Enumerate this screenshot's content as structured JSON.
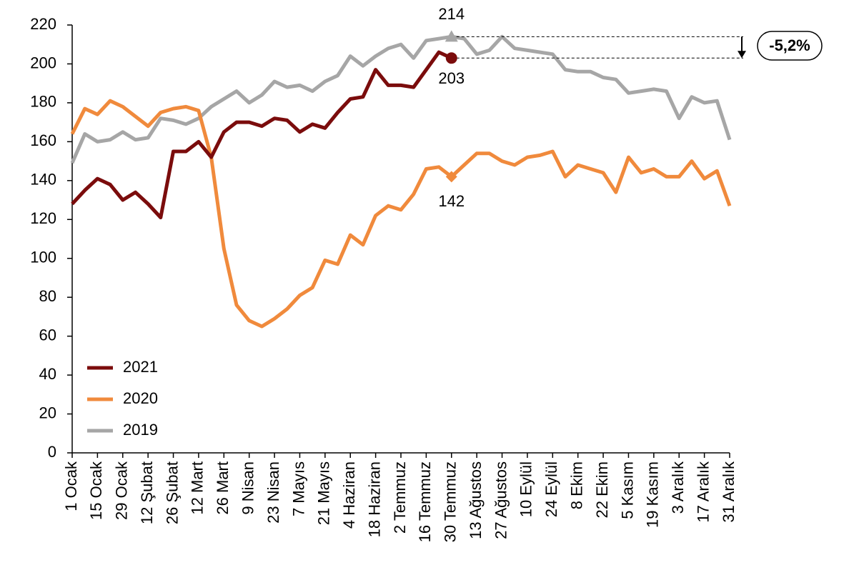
{
  "chart_data": {
    "type": "line",
    "categories": [
      "1 Ocak",
      null,
      "15 Ocak",
      null,
      "29 Ocak",
      null,
      "12 Şubat",
      null,
      "26 Şubat",
      null,
      "12 Mart",
      null,
      "26 Mart",
      null,
      "9 Nisan",
      null,
      "23 Nisan",
      null,
      "7 Mayıs",
      null,
      "21 Mayıs",
      null,
      "4 Haziran",
      null,
      "18 Haziran",
      null,
      "2 Temmuz",
      null,
      "16 Temmuz",
      null,
      "30 Temmuz",
      null,
      "13 Ağustos",
      null,
      "27 Ağustos",
      null,
      "10 Eylül",
      null,
      "24 Eylül",
      null,
      "8 Ekim",
      null,
      "22 Ekim",
      null,
      "5 Kasım",
      null,
      "19 Kasım",
      null,
      "3 Aralık",
      null,
      "17 Aralık",
      null,
      "31 Aralık"
    ],
    "series": [
      {
        "name": "2021",
        "color": "#7b0c0c",
        "marker": "circle",
        "values": [
          128,
          135,
          141,
          138,
          130,
          134,
          128,
          121,
          155,
          155,
          160,
          152,
          165,
          170,
          170,
          168,
          172,
          171,
          165,
          169,
          167,
          175,
          182,
          183,
          197,
          189,
          189,
          188,
          197,
          206,
          203,
          null,
          null,
          null,
          null,
          null,
          null,
          null,
          null,
          null,
          null,
          null,
          null,
          null,
          null,
          null,
          null,
          null,
          null,
          null,
          null,
          null,
          null
        ]
      },
      {
        "name": "2020",
        "color": "#f08a3c",
        "marker": "diamond",
        "values": [
          164,
          177,
          174,
          181,
          178,
          173,
          168,
          175,
          177,
          178,
          176,
          152,
          105,
          76,
          68,
          65,
          69,
          74,
          81,
          85,
          99,
          97,
          112,
          107,
          122,
          127,
          125,
          133,
          146,
          147,
          142,
          148,
          154,
          154,
          150,
          148,
          152,
          153,
          155,
          142,
          148,
          146,
          144,
          134,
          152,
          144,
          146,
          142,
          142,
          150,
          141,
          145,
          127
        ]
      },
      {
        "name": "2019",
        "color": "#a6a6a6",
        "marker": "triangle",
        "values": [
          149,
          164,
          160,
          161,
          165,
          161,
          162,
          172,
          171,
          169,
          172,
          178,
          182,
          186,
          180,
          184,
          191,
          188,
          189,
          186,
          191,
          194,
          204,
          199,
          204,
          208,
          210,
          203,
          212,
          213,
          214,
          213,
          205,
          207,
          214,
          208,
          207,
          206,
          205,
          197,
          196,
          196,
          193,
          192,
          185,
          186,
          187,
          186,
          172,
          183,
          180,
          181,
          161
        ]
      }
    ],
    "annotation": "-5,2%",
    "ylim": [
      0,
      220
    ],
    "yticks": [
      0,
      20,
      40,
      60,
      80,
      100,
      120,
      140,
      160,
      180,
      200,
      220
    ],
    "legend": "lower left"
  }
}
